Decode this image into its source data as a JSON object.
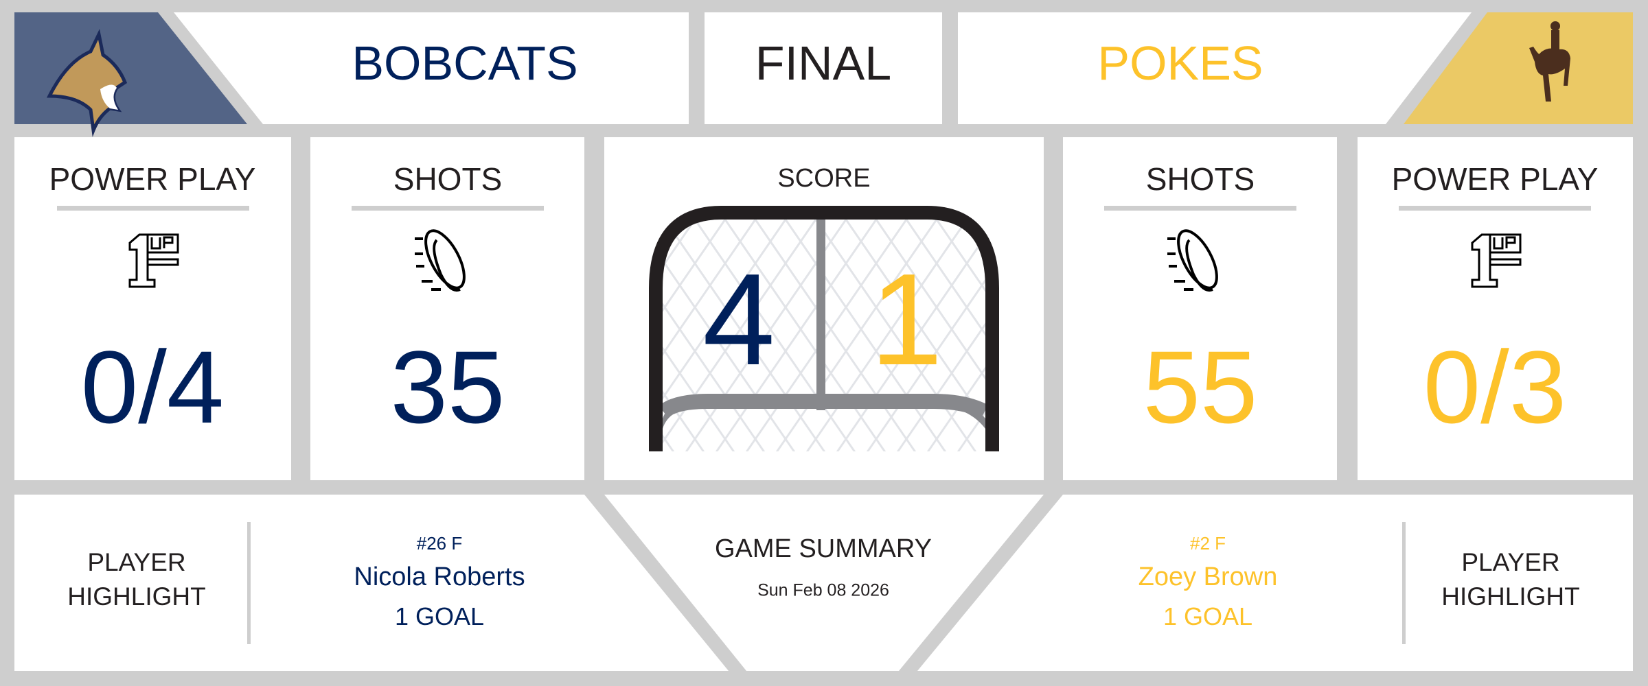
{
  "header": {
    "home_team": "BOBCATS",
    "status": "FINAL",
    "away_team": "POKES",
    "home_logo_icon": "bobcat-logo-icon",
    "away_logo_icon": "bucking-horse-logo-icon"
  },
  "home": {
    "power_play_label": "POWER PLAY",
    "power_play": "0/4",
    "shots_label": "SHOTS",
    "shots": "35",
    "score": "4",
    "highlight_label_1": "PLAYER",
    "highlight_label_2": "HIGHLIGHT",
    "player_number": "#26 F",
    "player_name": "Nicola Roberts",
    "player_stat": "1 GOAL"
  },
  "away": {
    "power_play_label": "POWER PLAY",
    "power_play": "0/3",
    "shots_label": "SHOTS",
    "shots": "55",
    "score": "1",
    "highlight_label_1": "PLAYER",
    "highlight_label_2": "HIGHLIGHT",
    "player_number": "#2 F",
    "player_name": "Zoey Brown",
    "player_stat": "1 GOAL"
  },
  "center": {
    "score_label": "SCORE",
    "summary_label": "GAME SUMMARY",
    "date": "Sun Feb 08 2026"
  },
  "colors": {
    "home": "#00205b",
    "away": "#fdc22a",
    "home_bg": "#536486",
    "away_bg": "#ebc965",
    "frame": "#cecece"
  }
}
